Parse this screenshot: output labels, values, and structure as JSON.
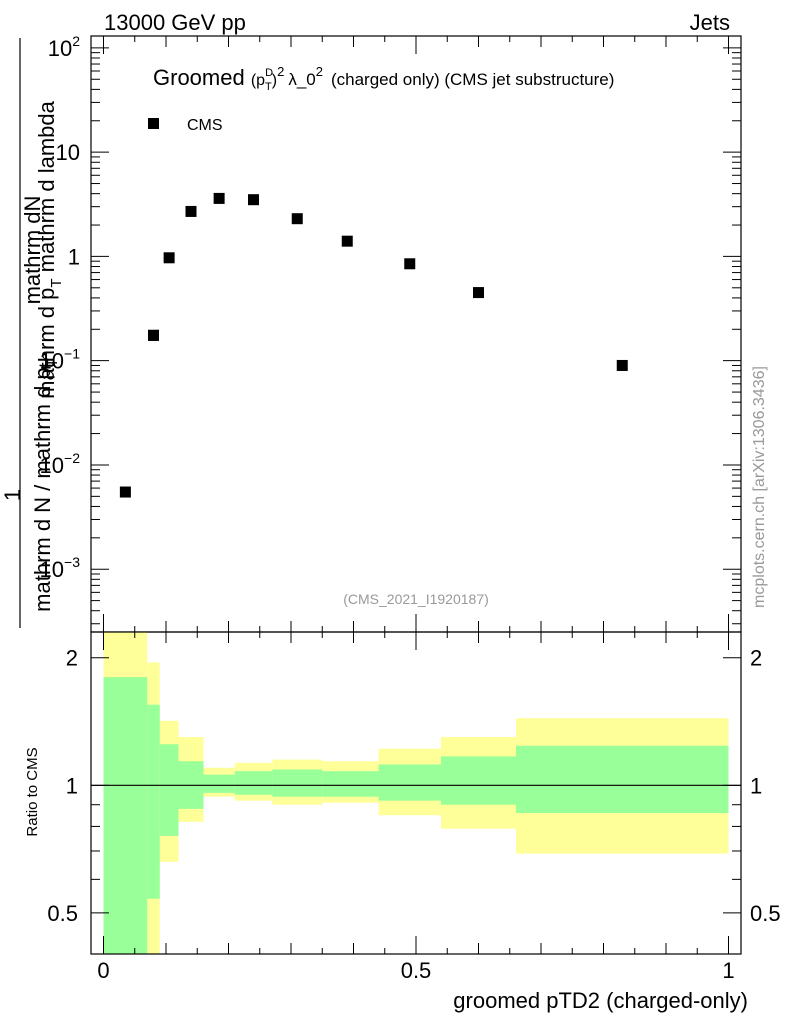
{
  "header": {
    "energy": "13000 GeV pp",
    "category": "Jets"
  },
  "side_label": "mcplots.cern.ch [arXiv:1306.3436]",
  "chart_data": [
    {
      "type": "scatter",
      "title_main": "Groomed",
      "title_rest": "(charged only) (CMS jet substructure)",
      "title_p": "(p",
      "title_sup_d": "D",
      "title_sub_t": "T",
      "title_sq": ")",
      "title_exp": "2",
      "title_lambda": "λ_0",
      "ylabel_num": "mathrm d",
      "ylabel_num_N": "N",
      "ylabel_den": "mathrm d p",
      "ylabel_den_sub": "T",
      "ylabel_den_rest": "mathrm d lambda",
      "ylabel_prefix_num": "1",
      "ylabel_prefix_den": "mathrm d N / mathrm d p",
      "ylabel_prefix_den_sub": "T",
      "yscale": "log",
      "ylim": [
        0.00025,
        130
      ],
      "xlim": [
        -0.02,
        1.02
      ],
      "y_ticks": [
        {
          "base": "10",
          "exp": "−3",
          "value": 0.001
        },
        {
          "base": "10",
          "exp": "−2",
          "value": 0.01
        },
        {
          "base": "10",
          "exp": "−1",
          "value": 0.1
        },
        {
          "base": "1",
          "exp": "",
          "value": 1
        },
        {
          "base": "10",
          "exp": "",
          "value": 10
        },
        {
          "base": "10",
          "exp": "2",
          "value": 100
        }
      ],
      "legend": [
        "CMS"
      ],
      "legend_position": "top-left",
      "watermark": "(CMS_2021_I1920187)",
      "series": [
        {
          "name": "CMS",
          "x": [
            0.035,
            0.08,
            0.08,
            0.105,
            0.14,
            0.185,
            0.24,
            0.31,
            0.39,
            0.49,
            0.6,
            0.83
          ],
          "y": [
            0.0055,
            0.175,
            0.175,
            0.97,
            2.7,
            3.6,
            3.5,
            2.3,
            1.4,
            0.85,
            0.45,
            0.09
          ]
        }
      ]
    },
    {
      "type": "area",
      "ylabel": "Ratio to CMS",
      "xlabel": "groomed pTD2 (charged-only)",
      "yscale": "log",
      "ylim": [
        0.4,
        2.3
      ],
      "xlim": [
        -0.02,
        1.02
      ],
      "y_ticks": [
        {
          "label": "0.5",
          "value": 0.5
        },
        {
          "label": "1",
          "value": 1
        },
        {
          "label": "2",
          "value": 2
        }
      ],
      "x_ticks": [
        {
          "label": "0",
          "value": 0
        },
        {
          "label": "0.5",
          "value": 0.5
        },
        {
          "label": "1",
          "value": 1
        }
      ],
      "reference_line": 1,
      "bins": [
        {
          "x0": 0.0,
          "x1": 0.07,
          "y_lo": 0.35,
          "y_hi": 2.3,
          "g_lo": 0.35,
          "g_hi": 1.8
        },
        {
          "x0": 0.07,
          "x1": 0.09,
          "y_lo": 0.35,
          "y_hi": 1.95,
          "g_lo": 0.54,
          "g_hi": 1.55
        },
        {
          "x0": 0.09,
          "x1": 0.12,
          "y_lo": 0.66,
          "y_hi": 1.42,
          "g_lo": 0.76,
          "g_hi": 1.25
        },
        {
          "x0": 0.12,
          "x1": 0.16,
          "y_lo": 0.82,
          "y_hi": 1.3,
          "g_lo": 0.88,
          "g_hi": 1.14
        },
        {
          "x0": 0.16,
          "x1": 0.21,
          "y_lo": 0.94,
          "y_hi": 1.1,
          "g_lo": 0.96,
          "g_hi": 1.06
        },
        {
          "x0": 0.21,
          "x1": 0.27,
          "y_lo": 0.92,
          "y_hi": 1.13,
          "g_lo": 0.95,
          "g_hi": 1.08
        },
        {
          "x0": 0.27,
          "x1": 0.35,
          "y_lo": 0.9,
          "y_hi": 1.15,
          "g_lo": 0.94,
          "g_hi": 1.09
        },
        {
          "x0": 0.35,
          "x1": 0.44,
          "y_lo": 0.91,
          "y_hi": 1.14,
          "g_lo": 0.94,
          "g_hi": 1.08
        },
        {
          "x0": 0.44,
          "x1": 0.54,
          "y_lo": 0.85,
          "y_hi": 1.22,
          "g_lo": 0.92,
          "g_hi": 1.12
        },
        {
          "x0": 0.54,
          "x1": 0.66,
          "y_lo": 0.79,
          "y_hi": 1.3,
          "g_lo": 0.9,
          "g_hi": 1.17
        },
        {
          "x0": 0.66,
          "x1": 1.0,
          "y_lo": 0.69,
          "y_hi": 1.44,
          "g_lo": 0.86,
          "g_hi": 1.24
        }
      ]
    }
  ]
}
